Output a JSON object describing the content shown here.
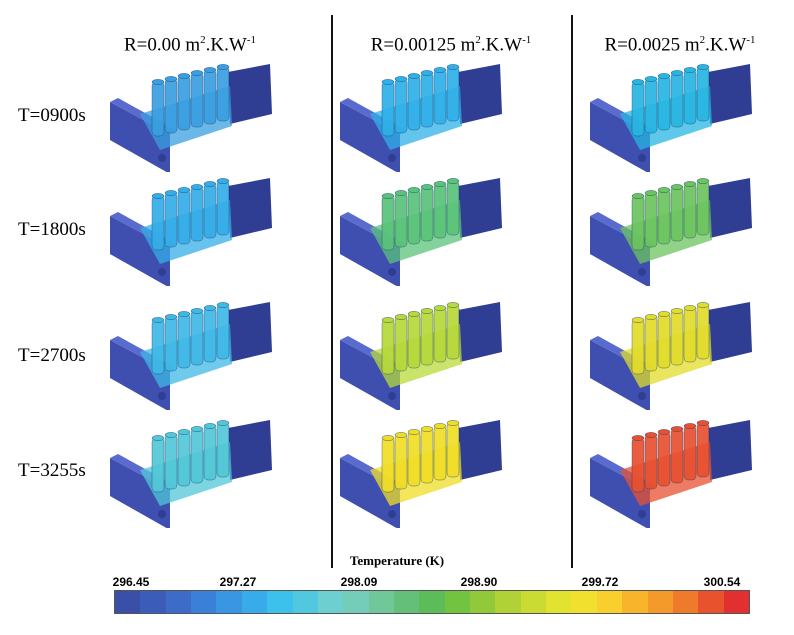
{
  "columns": [
    {
      "id": "r000",
      "sup_pre": "R=0.00 m",
      "sup_a": "2",
      "mid": ".K.W",
      "sup_b": "-1"
    },
    {
      "id": "r125",
      "sup_pre": "R=0.00125 m",
      "sup_a": "2",
      "mid": ".K.W",
      "sup_b": "-1"
    },
    {
      "id": "r250",
      "sup_pre": "R=0.0025 m",
      "sup_a": "2",
      "mid": ".K.W",
      "sup_b": "-1"
    }
  ],
  "rows": [
    {
      "id": "t0900",
      "label": "T=0900s"
    },
    {
      "id": "t1800",
      "label": "T=1800s"
    },
    {
      "id": "t2700",
      "label": "T=2700s"
    },
    {
      "id": "t3255",
      "label": "T=3255s"
    }
  ],
  "fields": [
    [
      "#3a9fe0",
      "#2fb0e8",
      "#27b6e2"
    ],
    [
      "#35ade8",
      "#5ac37a",
      "#6cc45e"
    ],
    [
      "#3fb8e6",
      "#b7d93a",
      "#e2dc2a"
    ],
    [
      "#52c7d8",
      "#f0de26",
      "#e85030"
    ]
  ],
  "legend": {
    "title": "Temperature (K)",
    "ticks": [
      "296.45",
      "297.27",
      "298.09",
      "298.90",
      "299.72",
      "300.54"
    ],
    "colors": [
      "#3a4fa8",
      "#3b5cb8",
      "#3d6bc8",
      "#3a80d8",
      "#3896e2",
      "#38acea",
      "#3cc0ec",
      "#52c8e0",
      "#6ecfd0",
      "#74cdb8",
      "#6fc79a",
      "#64c078",
      "#5cbd58",
      "#72c340",
      "#92c93a",
      "#b0d236",
      "#cadb34",
      "#e2e231",
      "#f2e02e",
      "#f8cf2c",
      "#f8b42a",
      "#f49a2a",
      "#ef7a2c",
      "#e8532e",
      "#e23030"
    ]
  },
  "colors": {
    "base": "#3f4fb0",
    "base_dark": "#2f3d93",
    "background": "#ffffff"
  }
}
